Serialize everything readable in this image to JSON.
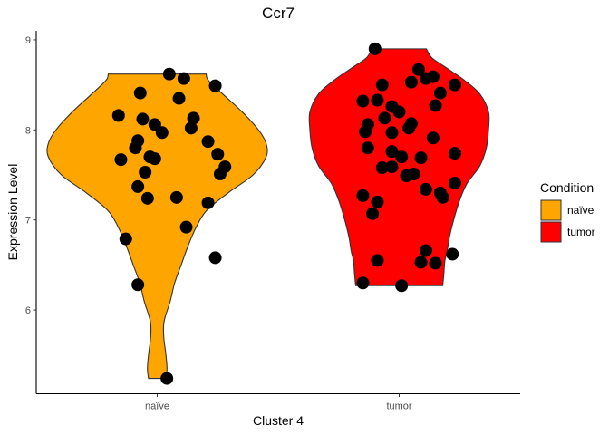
{
  "chart_data": {
    "type": "violin",
    "title": "Ccr7",
    "xlabel": "Cluster 4",
    "ylabel": "Expression Level",
    "categories": [
      "naïve",
      "tumor"
    ],
    "ylim": [
      5.07,
      9.1
    ],
    "yticks": [
      6,
      7,
      8,
      9
    ],
    "grid": false,
    "legend": {
      "title": "Condition",
      "position": "right",
      "entries": [
        {
          "label": "naïve",
          "color": "#FFA500"
        },
        {
          "label": "tumor",
          "color": "#FF0000"
        }
      ]
    },
    "series": [
      {
        "category": "naïve",
        "color": "#FFA500",
        "range": [
          5.24,
          8.62
        ],
        "density": [
          [
            5.24,
            0.08
          ],
          [
            5.35,
            0.09
          ],
          [
            5.5,
            0.08
          ],
          [
            5.7,
            0.06
          ],
          [
            5.85,
            0.06
          ],
          [
            5.95,
            0.08
          ],
          [
            6.1,
            0.12
          ],
          [
            6.3,
            0.16
          ],
          [
            6.5,
            0.22
          ],
          [
            6.7,
            0.28
          ],
          [
            6.9,
            0.35
          ],
          [
            7.1,
            0.45
          ],
          [
            7.3,
            0.65
          ],
          [
            7.5,
            0.88
          ],
          [
            7.7,
            1.0
          ],
          [
            7.85,
            1.0
          ],
          [
            8.0,
            0.93
          ],
          [
            8.2,
            0.78
          ],
          [
            8.4,
            0.6
          ],
          [
            8.55,
            0.47
          ],
          [
            8.62,
            0.45
          ]
        ],
        "points": [
          [
            0.05,
            8.62
          ],
          [
            -0.07,
            8.41
          ],
          [
            0.11,
            8.57
          ],
          [
            0.09,
            8.35
          ],
          [
            0.24,
            8.49
          ],
          [
            -0.16,
            8.16
          ],
          [
            -0.06,
            8.12
          ],
          [
            -0.01,
            8.06
          ],
          [
            0.15,
            8.13
          ],
          [
            0.14,
            8.02
          ],
          [
            0.02,
            7.97
          ],
          [
            -0.08,
            7.88
          ],
          [
            -0.09,
            7.8
          ],
          [
            -0.15,
            7.67
          ],
          [
            -0.01,
            7.68
          ],
          [
            -0.03,
            7.7
          ],
          [
            0.21,
            7.87
          ],
          [
            0.25,
            7.73
          ],
          [
            0.28,
            7.59
          ],
          [
            0.26,
            7.51
          ],
          [
            -0.05,
            7.53
          ],
          [
            -0.08,
            7.37
          ],
          [
            -0.04,
            7.24
          ],
          [
            0.08,
            7.25
          ],
          [
            0.21,
            7.19
          ],
          [
            0.12,
            6.92
          ],
          [
            -0.13,
            6.79
          ],
          [
            0.24,
            6.58
          ],
          [
            -0.08,
            6.28
          ],
          [
            0.04,
            5.24
          ]
        ]
      },
      {
        "category": "tumor",
        "color": "#FF0000",
        "range": [
          6.27,
          8.9
        ],
        "density": [
          [
            6.27,
            0.4
          ],
          [
            6.4,
            0.41
          ],
          [
            6.55,
            0.42
          ],
          [
            6.65,
            0.44
          ],
          [
            6.8,
            0.46
          ],
          [
            7.0,
            0.5
          ],
          [
            7.2,
            0.55
          ],
          [
            7.4,
            0.62
          ],
          [
            7.6,
            0.74
          ],
          [
            7.8,
            0.8
          ],
          [
            8.0,
            0.82
          ],
          [
            8.2,
            0.82
          ],
          [
            8.4,
            0.74
          ],
          [
            8.55,
            0.6
          ],
          [
            8.7,
            0.42
          ],
          [
            8.8,
            0.3
          ],
          [
            8.9,
            0.25
          ]
        ],
        "points": [
          [
            -0.1,
            8.9
          ],
          [
            0.08,
            8.67
          ],
          [
            0.14,
            8.59
          ],
          [
            0.11,
            8.57
          ],
          [
            0.05,
            8.53
          ],
          [
            -0.07,
            8.5
          ],
          [
            0.23,
            8.5
          ],
          [
            0.17,
            8.41
          ],
          [
            -0.15,
            8.32
          ],
          [
            -0.09,
            8.33
          ],
          [
            -0.03,
            8.26
          ],
          [
            0.15,
            8.27
          ],
          [
            0.0,
            8.2
          ],
          [
            -0.06,
            8.13
          ],
          [
            -0.13,
            8.06
          ],
          [
            0.04,
            8.02
          ],
          [
            -0.14,
            7.98
          ],
          [
            -0.03,
            7.97
          ],
          [
            0.05,
            8.07
          ],
          [
            0.14,
            7.91
          ],
          [
            -0.13,
            7.8
          ],
          [
            -0.03,
            7.76
          ],
          [
            0.23,
            7.74
          ],
          [
            0.09,
            7.69
          ],
          [
            0.01,
            7.7
          ],
          [
            -0.07,
            7.58
          ],
          [
            -0.03,
            7.59
          ],
          [
            0.03,
            7.49
          ],
          [
            0.06,
            7.51
          ],
          [
            0.23,
            7.41
          ],
          [
            0.11,
            7.34
          ],
          [
            0.17,
            7.3
          ],
          [
            0.18,
            7.25
          ],
          [
            -0.15,
            7.27
          ],
          [
            -0.09,
            7.2
          ],
          [
            -0.11,
            7.07
          ],
          [
            0.11,
            6.66
          ],
          [
            0.22,
            6.62
          ],
          [
            0.09,
            6.53
          ],
          [
            -0.09,
            6.55
          ],
          [
            0.15,
            6.52
          ],
          [
            -0.15,
            6.3
          ],
          [
            0.01,
            6.27
          ]
        ]
      }
    ]
  }
}
